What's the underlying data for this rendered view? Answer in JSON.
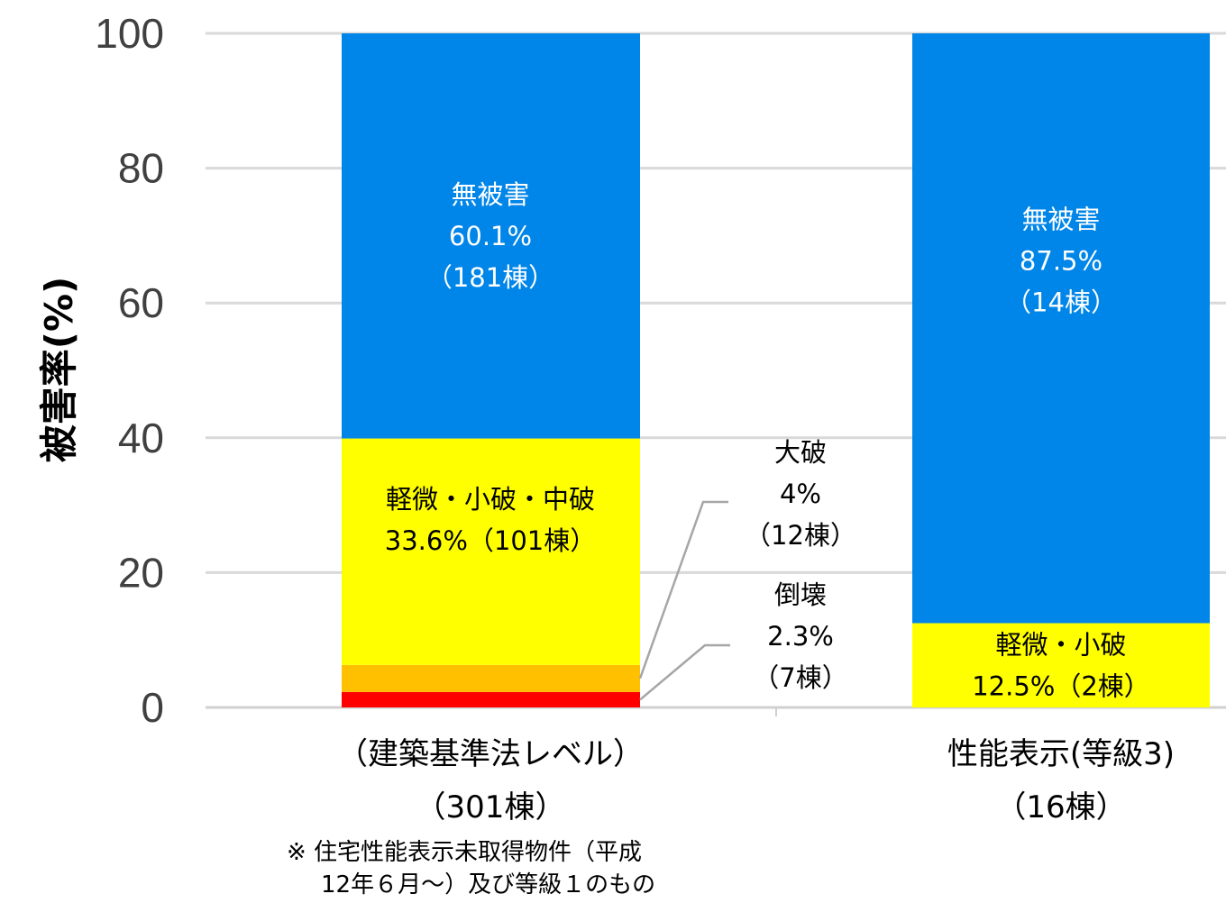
{
  "chart_data": {
    "type": "bar",
    "stacked": true,
    "ylabel": "被害率(%)",
    "ylim": [
      0,
      100
    ],
    "yticks": [
      "0",
      "20",
      "40",
      "60",
      "80",
      "100"
    ],
    "grid": true,
    "categories": [
      {
        "line1": "（建築基準法レベル）",
        "line2": "（301棟）"
      },
      {
        "line1": "性能表示(等級3)",
        "line2": "（16棟）"
      }
    ],
    "bars": [
      {
        "segments": [
          {
            "value": 2.3,
            "color": "#ff0000",
            "label": [
              "倒壊",
              "2.3%",
              "（7棟）"
            ],
            "callout": true
          },
          {
            "value": 4.0,
            "color": "#ffc000",
            "label": [
              "大破",
              "4%",
              "（12棟）"
            ],
            "callout": true
          },
          {
            "value": 33.6,
            "color": "#ffff00",
            "label": [
              "軽微・小破・中破",
              "33.6%（101棟）"
            ],
            "text_color": "#000000"
          },
          {
            "value": 60.1,
            "color": "#0085e8",
            "label": [
              "無被害",
              "60.1%",
              "（181棟）"
            ],
            "text_color": "#ffffff"
          }
        ]
      },
      {
        "segments": [
          {
            "value": 12.5,
            "color": "#ffff00",
            "label": [
              "軽微・小破",
              "12.5%（2棟）"
            ],
            "text_color": "#000000"
          },
          {
            "value": 87.5,
            "color": "#0085e8",
            "label": [
              "無被害",
              "87.5%",
              "（14棟）"
            ],
            "text_color": "#ffffff"
          }
        ]
      }
    ],
    "note": [
      "※  住宅性能表示未取得物件（平成",
      "12年６月～）及び等級１のもの"
    ]
  }
}
